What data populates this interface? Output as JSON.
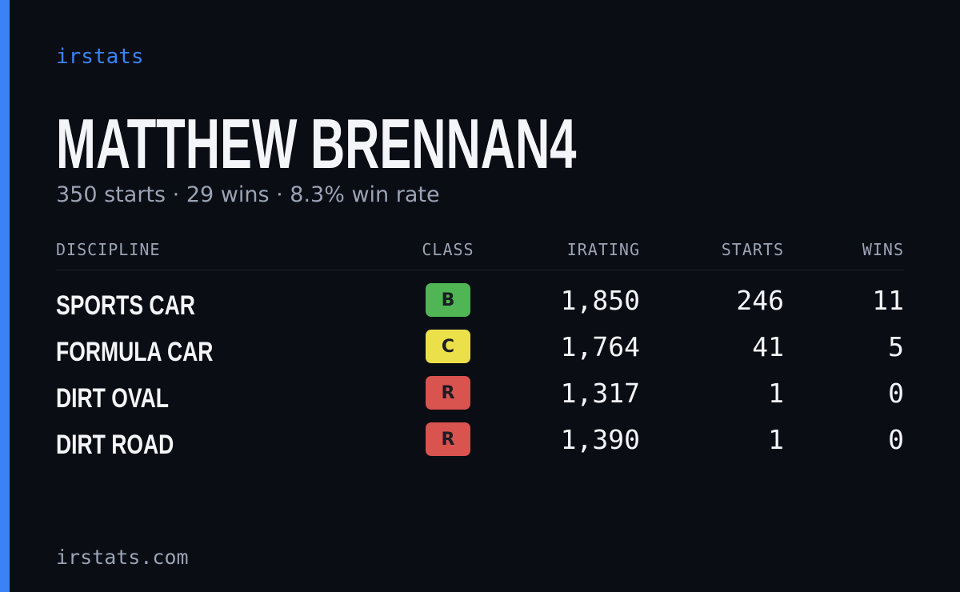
{
  "brand": "irstats",
  "profile": {
    "name": "MATTHEW BRENNAN4",
    "summary": "350 starts · 29 wins · 8.3% win rate"
  },
  "table": {
    "columns": [
      "DISCIPLINE",
      "CLASS",
      "IRATING",
      "STARTS",
      "WINS"
    ],
    "rows": [
      {
        "discipline": "SPORTS CAR",
        "class": "B",
        "class_color": "#4fb555",
        "irating": "1,850",
        "starts": "246",
        "wins": "11"
      },
      {
        "discipline": "FORMULA CAR",
        "class": "C",
        "class_color": "#ebe04a",
        "irating": "1,764",
        "starts": "41",
        "wins": "5"
      },
      {
        "discipline": "DIRT OVAL",
        "class": "R",
        "class_color": "#d9534f",
        "irating": "1,317",
        "starts": "1",
        "wins": "0"
      },
      {
        "discipline": "DIRT ROAD",
        "class": "R",
        "class_color": "#d9534f",
        "irating": "1,390",
        "starts": "1",
        "wins": "0"
      }
    ]
  },
  "footer": "irstats.com"
}
